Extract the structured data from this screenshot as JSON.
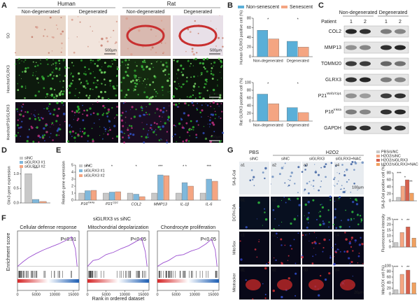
{
  "panel_labels": [
    "A",
    "B",
    "C",
    "D",
    "E",
    "F",
    "G"
  ],
  "panel_a": {
    "groups": [
      "Human",
      "Rat"
    ],
    "columns": [
      "Non-degenerated",
      "Degenerated",
      "Non-degenerated",
      "Degenerated"
    ],
    "rows": [
      "SO",
      "Hoechst/GLRX3",
      "Hoechst/P16/GLRX3"
    ],
    "scale_bars": [
      "500μm",
      "500μm",
      "100μm",
      "100μm"
    ]
  },
  "panel_c": {
    "groups": [
      "Non-degenerated",
      "Degenerated"
    ],
    "patient_label": "Patient",
    "lanes": [
      "1",
      "2",
      "1",
      "2"
    ],
    "proteins": [
      "COL2",
      "MMP13",
      "TOMM20",
      "GLRX3",
      "P21",
      "P16",
      "GAPDH"
    ],
    "protein_superscripts": [
      null,
      null,
      null,
      null,
      "Waf1/Cip1",
      "Ink4a",
      null
    ]
  },
  "panel_f": {
    "title": "siGLRX3 vs siNC"
  },
  "panel_g": {
    "treatments": [
      "PBS",
      "H2O2"
    ],
    "columns": [
      "siNC",
      "siNC",
      "siGLRX3",
      "siGLRX3+NAC"
    ],
    "rows": [
      "SA-β-Gal",
      "DCFH-DA",
      "MitoSox",
      "Mitotracker"
    ],
    "tiles": [
      [
        "a1",
        "a2",
        "a3",
        "a4"
      ],
      [
        "b1",
        "b2",
        "b3",
        "b4"
      ],
      [
        "c1",
        "c2",
        "c3",
        "c4"
      ],
      [
        "d1",
        "d2",
        "d3",
        "d4"
      ]
    ],
    "scale_bars": [
      "100μm",
      "20μm"
    ]
  },
  "chart_data": [
    {
      "type": "bar",
      "ylabel": "Human GLRX3 positive cell (%)",
      "categories": [
        "Non-degenerated",
        "Degenerated"
      ],
      "series": [
        {
          "name": "Non-senescent",
          "color": "#5aafd8",
          "values": [
            55,
            32
          ]
        },
        {
          "name": "Senescent",
          "color": "#f4a582",
          "values": [
            37,
            20
          ]
        }
      ],
      "ylim": [
        0,
        80
      ],
      "yticks": [
        0,
        20,
        40,
        60,
        80
      ],
      "legend": "top",
      "annotations": [
        "*",
        "*"
      ]
    },
    {
      "type": "bar",
      "ylabel": "Rat GLRX3 positive cell (%)",
      "categories": [
        "Non-degenerated",
        "Degenerated"
      ],
      "series": [
        {
          "color": "#5aafd8",
          "values": [
            70,
            35
          ]
        },
        {
          "color": "#f4a582",
          "values": [
            45,
            22
          ]
        }
      ],
      "ylim": [
        0,
        100
      ],
      "yticks": [
        0,
        20,
        40,
        60,
        80,
        100
      ],
      "annotations": [
        "*",
        "*"
      ]
    },
    {
      "type": "bar",
      "ylabel": "Glrx3 gene expression",
      "categories": [
        null
      ],
      "series": [
        {
          "name": "siNC",
          "color": "#c8c8c8",
          "values": [
            1.0
          ]
        },
        {
          "name": "siGLRX3 #1",
          "color": "#7fb8dc",
          "values": [
            0.12
          ]
        },
        {
          "name": "siGLRX3 #2",
          "color": "#f4a582",
          "values": [
            0.05
          ]
        }
      ],
      "ylim": [
        0,
        1.2
      ],
      "yticks": [
        {
          "value": 0,
          "label": "0.0"
        },
        {
          "value": 0.5,
          "label": "0.5"
        },
        {
          "value": 1,
          "label": "1.0"
        }
      ],
      "legend": "top",
      "annotations": [
        "***"
      ]
    },
    {
      "type": "bar",
      "ylabel": "Relative gene expression",
      "categories": [
        "P16",
        "P21",
        "COL2",
        "MMP13",
        "IL-1β",
        "IL-6"
      ],
      "category_superscripts": [
        "Ink4a",
        "Cip1",
        null,
        null,
        null,
        null
      ],
      "series": [
        {
          "name": "siNC",
          "color": "#c8c8c8",
          "values": [
            1,
            1,
            1,
            1,
            1,
            1
          ]
        },
        {
          "name": "siGLRX3 #1",
          "color": "#7fb8dc",
          "values": [
            1.35,
            1.15,
            0.85,
            3.6,
            2.5,
            3.0
          ]
        },
        {
          "name": "siGLRX3 #2",
          "color": "#f4a582",
          "values": [
            1.4,
            1.2,
            0.5,
            3.5,
            2.0,
            2.7
          ]
        }
      ],
      "ylim": [
        0,
        5
      ],
      "yticks": [
        0,
        1,
        2,
        3,
        4,
        5
      ],
      "legend": "upper left",
      "annotations": [
        "* *",
        "*",
        "*",
        "***",
        "* *",
        "***"
      ]
    },
    {
      "type": "line",
      "title": "Cellular defense response",
      "annotation": "P<0.01",
      "ylabel": "Enrichment score",
      "color": "#9b4fd0",
      "x": [
        0,
        1500,
        3000,
        5000,
        7000,
        9000,
        11000,
        13000,
        14500,
        15500,
        16000
      ],
      "values": [
        0,
        0.08,
        0.15,
        0.22,
        0.28,
        0.33,
        0.38,
        0.44,
        0.5,
        0.3,
        0
      ],
      "xlim": [
        0,
        16500
      ],
      "ylim": [
        -0.05,
        0.6
      ],
      "xticks": [
        0,
        5000,
        10000,
        15000
      ]
    },
    {
      "type": "line",
      "title": "Mitochondrial depolarization",
      "annotation": "P<0.05",
      "xlabel": "Rank in ordered dataset",
      "color": "#9b4fd0",
      "x": [
        0,
        1500,
        3000,
        5000,
        7000,
        9000,
        11000,
        13000,
        14500,
        15500,
        16000
      ],
      "values": [
        0,
        0.1,
        0.12,
        0.2,
        0.24,
        0.3,
        0.35,
        0.42,
        0.48,
        0.25,
        0
      ],
      "xlim": [
        0,
        16500
      ],
      "ylim": [
        -0.05,
        0.6
      ],
      "xticks": [
        0,
        5000,
        10000,
        15000
      ]
    },
    {
      "type": "line",
      "title": "Chondrocyte proliferation",
      "annotation": "P<0.05",
      "color": "#9b4fd0",
      "x": [
        0,
        1500,
        3000,
        5000,
        7000,
        9000,
        11000,
        13000,
        14500,
        15500,
        16000
      ],
      "values": [
        0,
        0.06,
        0.1,
        0.18,
        0.2,
        0.26,
        0.3,
        0.38,
        0.46,
        0.28,
        0
      ],
      "xlim": [
        0,
        16500
      ],
      "ylim": [
        -0.05,
        0.6
      ],
      "xticks": [
        0,
        5000,
        10000,
        15000
      ]
    },
    {
      "type": "bar",
      "ylabel": "SA-β-Gal positive cell (%)",
      "categories": [
        null
      ],
      "series": [
        {
          "name": "PBS/siNC",
          "color": "#c8c8c8",
          "values": [
            10
          ]
        },
        {
          "name": "H2O2/siNC",
          "color": "#f4a582",
          "values": [
            42
          ]
        },
        {
          "name": "H2O2/siGLRX3",
          "color": "#d6604d",
          "values": [
            60
          ]
        },
        {
          "name": "H2O2/siGLRX3+NAC",
          "color": "#f0a060",
          "values": [
            22
          ]
        }
      ],
      "ylim": [
        0,
        80
      ],
      "yticks": [
        0,
        20,
        40,
        60,
        80
      ],
      "legend": "top",
      "annotations": [
        "***",
        "*",
        "**"
      ]
    },
    {
      "type": "bar",
      "ylabel": "Fluorescence intensity",
      "categories": [
        null,
        null,
        null,
        null
      ],
      "values": [
        4,
        13,
        18,
        8
      ],
      "colors": [
        "#c8c8c8",
        "#f4a582",
        "#d6604d",
        "#f0a060"
      ],
      "ylim": [
        0,
        25
      ],
      "yticks": [
        0,
        5,
        10,
        15,
        20,
        25
      ],
      "annotations": [
        "***",
        "*",
        "**"
      ]
    },
    {
      "type": "bar",
      "ylabel": "MitoSOX cell (%)",
      "categories": [
        null,
        null,
        null,
        null
      ],
      "values": [
        15,
        70,
        85,
        40
      ],
      "colors": [
        "#c8c8c8",
        "#f4a582",
        "#d6604d",
        "#f0a060"
      ],
      "ylim": [
        0,
        100
      ],
      "yticks": [
        0,
        20,
        40,
        60,
        80,
        100
      ],
      "annotations": [
        "***",
        "*",
        "**"
      ]
    }
  ]
}
